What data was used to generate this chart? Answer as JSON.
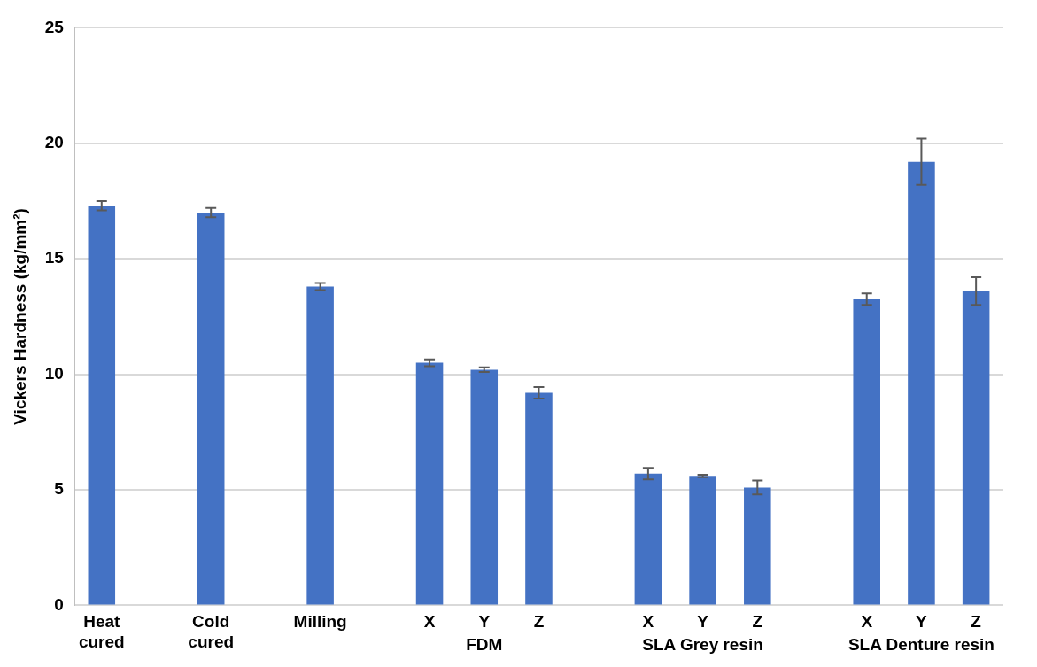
{
  "chart_data": {
    "type": "bar",
    "ylabel": "Vickers Hardness (kg/mm²)",
    "categories": [
      "Heat cured",
      null,
      "Cold cured",
      null,
      "Milling",
      null,
      "X",
      "Y",
      "Z",
      null,
      "X",
      "Y",
      "Z",
      null,
      "X",
      "Y",
      "Z"
    ],
    "values": [
      17.3,
      null,
      17.0,
      null,
      13.8,
      null,
      10.5,
      10.2,
      9.2,
      null,
      5.7,
      5.6,
      5.1,
      null,
      13.25,
      19.2,
      13.6
    ],
    "errors": [
      0.2,
      null,
      0.2,
      null,
      0.15,
      null,
      0.15,
      0.1,
      0.25,
      null,
      0.25,
      0.05,
      0.3,
      null,
      0.25,
      1.0,
      0.6
    ],
    "color": "#4472c4",
    "ylim": [
      0,
      25
    ],
    "yticks": [
      0,
      5,
      10,
      15,
      20,
      25
    ],
    "grid": "y",
    "annotations": [
      "FDM",
      "SLA Grey resin",
      "SLA Denture resin"
    ]
  }
}
